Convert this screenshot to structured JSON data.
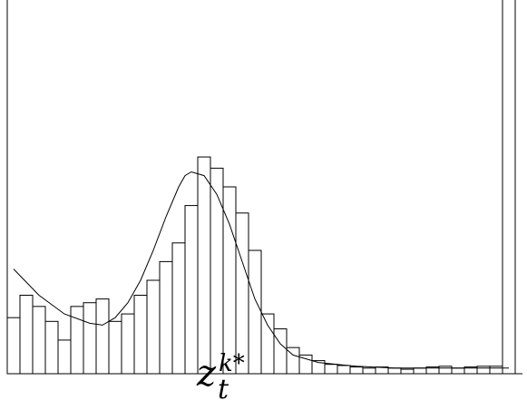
{
  "chart_data": {
    "type": "bar",
    "title": "",
    "xlabel": "",
    "ylabel": "",
    "grid": false,
    "legend": "none",
    "ylim": [
      0,
      10
    ],
    "bins_left_to_right": [
      1.5,
      2.1,
      1.8,
      1.4,
      0.9,
      1.8,
      1.9,
      2.0,
      1.4,
      1.6,
      2.1,
      2.5,
      3.0,
      3.5,
      4.5,
      5.8,
      5.5,
      5.0,
      4.3,
      3.3,
      1.6,
      1.2,
      0.7,
      0.5,
      0.35,
      0.25,
      0.22,
      0.18,
      0.15,
      0.18,
      0.15,
      0.12,
      0.15,
      0.18,
      0.2,
      0.15,
      0.18,
      0.2,
      0.2,
      10.3
    ],
    "fitted_curve": {
      "x": [
        0,
        2,
        4,
        6,
        7,
        8,
        9,
        10,
        11,
        12,
        13,
        13.5,
        14,
        15,
        16,
        17,
        18,
        19,
        20,
        21,
        22,
        24,
        27,
        30,
        34,
        38,
        39
      ],
      "y": [
        2.8,
        2.1,
        1.6,
        1.35,
        1.3,
        1.5,
        1.9,
        2.5,
        3.3,
        4.2,
        5.0,
        5.3,
        5.4,
        5.3,
        4.8,
        4.0,
        3.0,
        2.0,
        1.3,
        0.8,
        0.5,
        0.3,
        0.2,
        0.15,
        0.15,
        0.15,
        0.15
      ]
    },
    "marker_label": {
      "base": "z",
      "sub": "t",
      "sup": "k*"
    }
  }
}
